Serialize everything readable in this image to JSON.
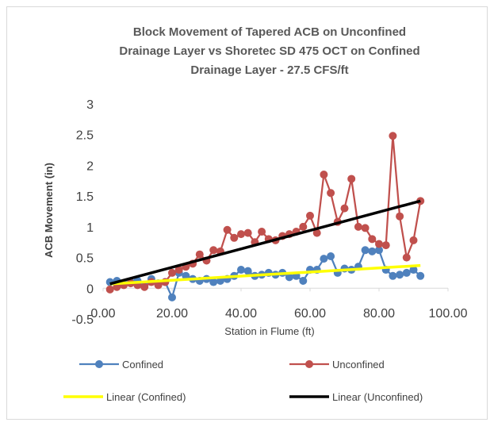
{
  "chart_data": {
    "type": "line",
    "title": [
      "Block Movement of Tapered ACB on Unconfined",
      "Drainage Layer vs Shoretec SD 475 OCT on Confined",
      "Drainage Layer - 27.5 CFS/ft"
    ],
    "x_label": "Station in Flume (ft)",
    "y_label": "ACB Movement (in)",
    "xlim": [
      0,
      100
    ],
    "ylim": [
      -0.5,
      3
    ],
    "xticks": [
      {
        "value": 0,
        "label": "0.00"
      },
      {
        "value": 20,
        "label": "20.00"
      },
      {
        "value": 40,
        "label": "40.00"
      },
      {
        "value": 60,
        "label": "60.00"
      },
      {
        "value": 80,
        "label": "80.00"
      },
      {
        "value": 100,
        "label": "100.00"
      }
    ],
    "yticks": [
      -0.5,
      0,
      0.5,
      1,
      1.5,
      2,
      2.5,
      3
    ],
    "grid": false,
    "legend": "bottom",
    "series": [
      {
        "name": "Confined",
        "color": "#4f81bd",
        "marker": true,
        "x": [
          2,
          4,
          6,
          8,
          10,
          12,
          14,
          16,
          18,
          20,
          22,
          24,
          26,
          28,
          30,
          32,
          34,
          36,
          38,
          40,
          42,
          44,
          46,
          48,
          50,
          52,
          54,
          56,
          58,
          60,
          62,
          64,
          66,
          68,
          70,
          72,
          74,
          76,
          78,
          80,
          82,
          84,
          86,
          88,
          90,
          92
        ],
        "values": [
          0.1,
          0.12,
          0.08,
          0.1,
          0.12,
          0.05,
          0.15,
          0.08,
          0.1,
          -0.15,
          0.25,
          0.2,
          0.15,
          0.12,
          0.15,
          0.1,
          0.12,
          0.15,
          0.2,
          0.3,
          0.28,
          0.2,
          0.22,
          0.25,
          0.22,
          0.25,
          0.18,
          0.2,
          0.12,
          0.3,
          0.3,
          0.48,
          0.52,
          0.25,
          0.32,
          0.3,
          0.35,
          0.62,
          0.6,
          0.62,
          0.3,
          0.2,
          0.22,
          0.25,
          0.3,
          0.2
        ]
      },
      {
        "name": "Unconfined",
        "color": "#c0504d",
        "marker": true,
        "x": [
          2,
          4,
          6,
          8,
          10,
          12,
          14,
          16,
          18,
          20,
          22,
          24,
          26,
          28,
          30,
          32,
          34,
          36,
          38,
          40,
          42,
          44,
          46,
          48,
          50,
          52,
          54,
          56,
          58,
          60,
          62,
          64,
          66,
          68,
          70,
          72,
          74,
          76,
          78,
          80,
          82,
          84,
          86,
          88,
          90,
          92
        ],
        "values": [
          -0.02,
          0.02,
          0.05,
          0.08,
          0.05,
          0.02,
          0.1,
          0.05,
          0.1,
          0.25,
          0.3,
          0.35,
          0.4,
          0.55,
          0.45,
          0.62,
          0.6,
          0.95,
          0.82,
          0.88,
          0.9,
          0.75,
          0.92,
          0.8,
          0.78,
          0.85,
          0.88,
          0.92,
          1.0,
          1.18,
          0.9,
          1.85,
          1.55,
          1.08,
          1.3,
          1.78,
          1.0,
          0.98,
          0.8,
          0.72,
          0.7,
          2.48,
          1.17,
          0.5,
          0.78,
          1.42
        ]
      },
      {
        "name": "Linear (Confined)",
        "color": "#ffff00",
        "marker": false,
        "x": [
          2,
          92
        ],
        "values": [
          0.07,
          0.37
        ]
      },
      {
        "name": "Linear (Unconfined)",
        "color": "#000000",
        "marker": false,
        "x": [
          2,
          92
        ],
        "values": [
          0.07,
          1.42
        ]
      }
    ]
  }
}
